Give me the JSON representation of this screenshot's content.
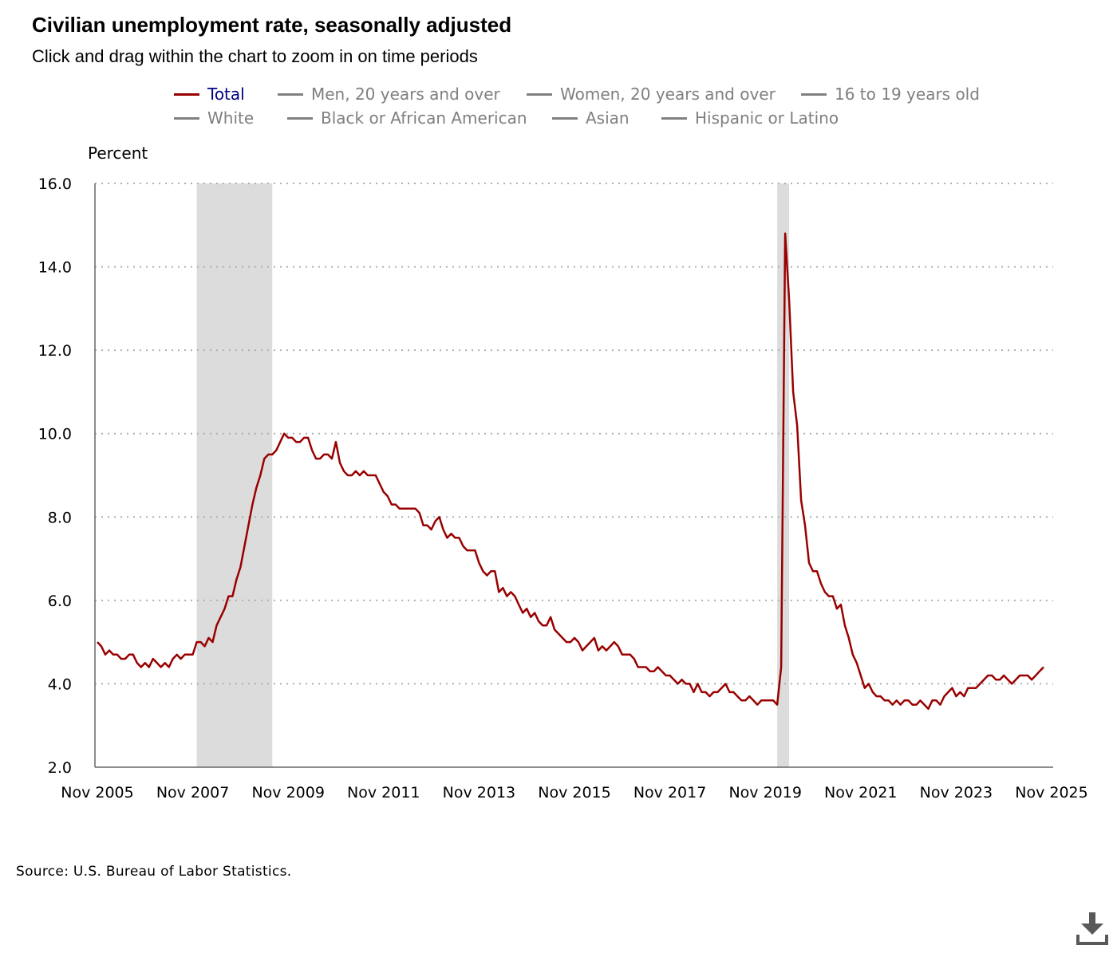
{
  "title": "Civilian unemployment rate, seasonally adjusted",
  "subtitle": "Click and drag within the chart to zoom in on time periods",
  "legend": [
    {
      "label": "Total",
      "active": true
    },
    {
      "label": "Men, 20 years and over",
      "active": false
    },
    {
      "label": "Women, 20 years and over",
      "active": false
    },
    {
      "label": "16 to 19 years old",
      "active": false
    },
    {
      "label": "White",
      "active": false
    },
    {
      "label": "Black or African American",
      "active": false
    },
    {
      "label": "Asian",
      "active": false
    },
    {
      "label": "Hispanic or Latino",
      "active": false
    }
  ],
  "source": "Source: U.S. Bureau of Labor Statistics.",
  "download_icon": "download-icon",
  "colors": {
    "total_line": "#990000",
    "recession_shade": "#dcdcdc",
    "grid": "#b0b0b0",
    "inactive_legend": "#808080",
    "active_legend_text": "#000080"
  },
  "chart_data": {
    "type": "line",
    "title": "Civilian unemployment rate, seasonally adjusted",
    "ylabel": "Percent",
    "ylim": [
      2.0,
      16.0
    ],
    "yticks": [
      "2.0",
      "4.0",
      "6.0",
      "8.0",
      "10.0",
      "12.0",
      "14.0",
      "16.0"
    ],
    "xticks": [
      "Nov 2005",
      "Nov 2007",
      "Nov 2009",
      "Nov 2011",
      "Nov 2013",
      "Nov 2015",
      "Nov 2017",
      "Nov 2019",
      "Nov 2021",
      "Nov 2023",
      "Nov 2025"
    ],
    "xlim": [
      "2005-11",
      "2025-11"
    ],
    "grid": "horizontal dotted",
    "recessions": [
      {
        "start": "2007-12",
        "end": "2009-06"
      },
      {
        "start": "2020-02",
        "end": "2020-04"
      }
    ],
    "series": [
      {
        "name": "Total",
        "start": "2005-11",
        "frequency": "monthly",
        "values": [
          5.0,
          4.9,
          4.7,
          4.8,
          4.7,
          4.7,
          4.6,
          4.6,
          4.7,
          4.7,
          4.5,
          4.4,
          4.5,
          4.4,
          4.6,
          4.5,
          4.4,
          4.5,
          4.4,
          4.6,
          4.7,
          4.6,
          4.7,
          4.7,
          4.7,
          5.0,
          5.0,
          4.9,
          5.1,
          5.0,
          5.4,
          5.6,
          5.8,
          6.1,
          6.1,
          6.5,
          6.8,
          7.3,
          7.8,
          8.3,
          8.7,
          9.0,
          9.4,
          9.5,
          9.5,
          9.6,
          9.8,
          10.0,
          9.9,
          9.9,
          9.8,
          9.8,
          9.9,
          9.9,
          9.6,
          9.4,
          9.4,
          9.5,
          9.5,
          9.4,
          9.8,
          9.3,
          9.1,
          9.0,
          9.0,
          9.1,
          9.0,
          9.1,
          9.0,
          9.0,
          9.0,
          8.8,
          8.6,
          8.5,
          8.3,
          8.3,
          8.2,
          8.2,
          8.2,
          8.2,
          8.2,
          8.1,
          7.8,
          7.8,
          7.7,
          7.9,
          8.0,
          7.7,
          7.5,
          7.6,
          7.5,
          7.5,
          7.3,
          7.2,
          7.2,
          7.2,
          6.9,
          6.7,
          6.6,
          6.7,
          6.7,
          6.2,
          6.3,
          6.1,
          6.2,
          6.1,
          5.9,
          5.7,
          5.8,
          5.6,
          5.7,
          5.5,
          5.4,
          5.4,
          5.6,
          5.3,
          5.2,
          5.1,
          5.0,
          5.0,
          5.1,
          5.0,
          4.8,
          4.9,
          5.0,
          5.1,
          4.8,
          4.9,
          4.8,
          4.9,
          5.0,
          4.9,
          4.7,
          4.7,
          4.7,
          4.6,
          4.4,
          4.4,
          4.4,
          4.3,
          4.3,
          4.4,
          4.3,
          4.2,
          4.2,
          4.1,
          4.0,
          4.1,
          4.0,
          4.0,
          3.8,
          4.0,
          3.8,
          3.8,
          3.7,
          3.8,
          3.8,
          3.9,
          4.0,
          3.8,
          3.8,
          3.7,
          3.6,
          3.6,
          3.7,
          3.6,
          3.5,
          3.6,
          3.6,
          3.6,
          3.6,
          3.5,
          4.4,
          14.8,
          13.2,
          11.0,
          10.2,
          8.4,
          7.8,
          6.9,
          6.7,
          6.7,
          6.4,
          6.2,
          6.1,
          6.1,
          5.8,
          5.9,
          5.4,
          5.1,
          4.7,
          4.5,
          4.2,
          3.9,
          4.0,
          3.8,
          3.7,
          3.7,
          3.6,
          3.6,
          3.5,
          3.6,
          3.5,
          3.6,
          3.6,
          3.5,
          3.5,
          3.6,
          3.5,
          3.4,
          3.6,
          3.6,
          3.5,
          3.7,
          3.8,
          3.9,
          3.7,
          3.8,
          3.7,
          3.9,
          3.9,
          3.9,
          4.0,
          4.1,
          4.2,
          4.2,
          4.1,
          4.1,
          4.2,
          4.1,
          4.0,
          4.1,
          4.2,
          4.2,
          4.2,
          4.1,
          4.2,
          4.3,
          4.4
        ]
      }
    ]
  }
}
